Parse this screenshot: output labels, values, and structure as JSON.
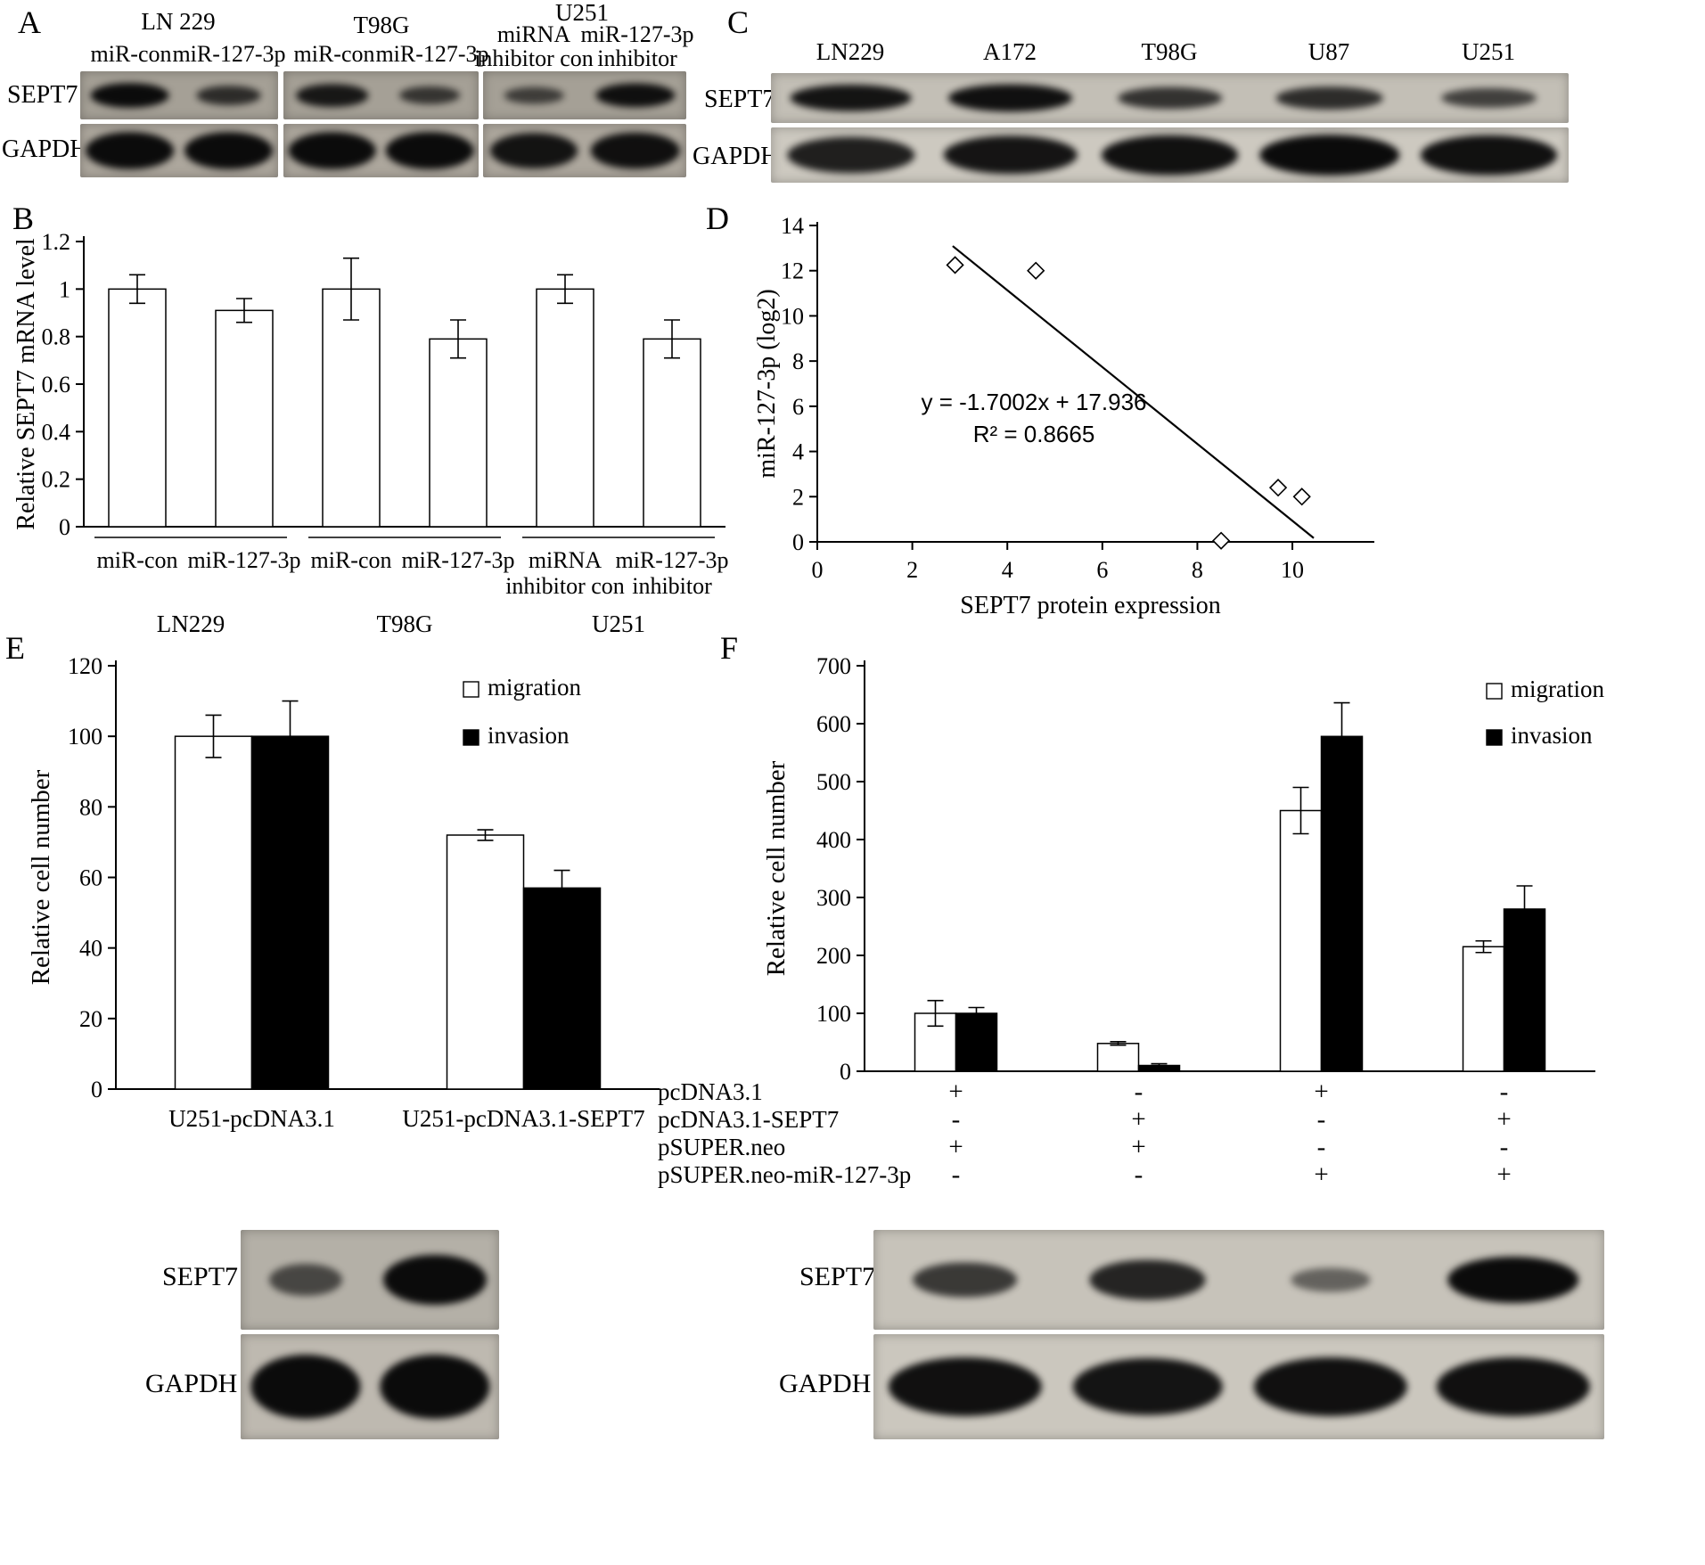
{
  "panel_a": {
    "label": "A",
    "row_labels": [
      "SEPT7",
      "GAPDH"
    ],
    "groups": [
      {
        "title": "LN 229",
        "lanes": [
          "miR-con",
          "miR-127-3p"
        ]
      },
      {
        "title": "T98G",
        "lanes": [
          "miR-con",
          "miR-127-3p"
        ]
      },
      {
        "title": "U251",
        "lanes": [
          "miRNA inhibitor con",
          "miR-127-3p inhibitor"
        ],
        "lanes_lines": [
          [
            "miRNA",
            "inhibitor con"
          ],
          [
            "miR-127-3p",
            "inhibitor"
          ]
        ]
      }
    ],
    "blot": {
      "sept7": [
        [
          1.0,
          0.6
        ],
        [
          0.85,
          0.5
        ],
        [
          0.4,
          0.95
        ]
      ],
      "gapdh": [
        [
          1.0,
          1.0
        ],
        [
          1.0,
          1.0
        ],
        [
          0.9,
          0.95
        ]
      ]
    }
  },
  "panel_c": {
    "label": "C",
    "lanes": [
      "LN229",
      "A172",
      "T98G",
      "U87",
      "U251"
    ],
    "row_labels": [
      "SEPT7",
      "GAPDH"
    ],
    "blot": {
      "sept7": [
        0.9,
        0.95,
        0.6,
        0.65,
        0.45
      ],
      "gapdh": [
        0.8,
        0.9,
        0.95,
        1.0,
        0.95
      ]
    }
  },
  "panel_b": {
    "label": "B"
  },
  "panel_d": {
    "label": "D"
  },
  "panel_e": {
    "label": "E",
    "blot_labels": [
      "SEPT7",
      "GAPDH"
    ],
    "blot": {
      "sept7": [
        0.35,
        1.0
      ],
      "gapdh": [
        1.0,
        1.0
      ]
    }
  },
  "panel_f": {
    "label": "F",
    "blot_labels": [
      "SEPT7",
      "GAPDH"
    ],
    "blot": {
      "sept7": [
        0.55,
        0.75,
        0.12,
        1.0
      ],
      "gapdh": [
        0.95,
        0.9,
        0.95,
        0.95
      ]
    }
  },
  "chart_data": [
    {
      "id": "chart-b",
      "type": "bar",
      "title": "",
      "xlabel": "",
      "ylabel": "Relative SEPT7 mRNA level",
      "ylim": [
        0,
        1.2
      ],
      "ytick_labels": [
        "0",
        "0.2",
        "0.4",
        "0.6",
        "0.8",
        "1",
        "1.2"
      ],
      "categories": [
        "miR-con",
        "miR-127-3p",
        "miR-con",
        "miR-127-3p",
        "miRNA inhibitor con",
        "miR-127-3p inhibitor"
      ],
      "category_label_lines": [
        [
          "miR-con"
        ],
        [
          "miR-127-3p"
        ],
        [
          "miR-con"
        ],
        [
          "miR-127-3p"
        ],
        [
          "miRNA",
          "inhibitor con"
        ],
        [
          "miR-127-3p",
          "inhibitor"
        ]
      ],
      "values": [
        1.0,
        0.91,
        1.0,
        0.79,
        1.0,
        0.79
      ],
      "errors": [
        0.06,
        0.05,
        0.13,
        0.08,
        0.06,
        0.08
      ],
      "groups": [
        {
          "label": "LN229",
          "from": 0,
          "to": 1
        },
        {
          "label": "T98G",
          "from": 2,
          "to": 3
        },
        {
          "label": "U251",
          "from": 4,
          "to": 5
        }
      ],
      "grid": false,
      "bar_fill": "#ffffff"
    },
    {
      "id": "chart-d",
      "type": "scatter",
      "xlabel": "SEPT7 protein expression",
      "ylabel": "miR-127-3p (log2)",
      "xlim": [
        0,
        11.5
      ],
      "ylim": [
        0,
        14
      ],
      "xtick_labels": [
        "0",
        "2",
        "4",
        "6",
        "8",
        "10"
      ],
      "ytick_labels": [
        "0",
        "2",
        "4",
        "6",
        "8",
        "10",
        "12",
        "14"
      ],
      "points": [
        [
          2.9,
          12.25
        ],
        [
          4.6,
          12.0
        ],
        [
          8.5,
          0.05
        ],
        [
          9.7,
          2.4
        ],
        [
          10.2,
          2.0
        ]
      ],
      "trendline": {
        "slope": -1.7002,
        "intercept": 17.936,
        "x_start": 2.85,
        "x_end": 10.45
      },
      "annotation_lines": [
        "y = -1.7002x + 17.936",
        "R² = 0.8665"
      ],
      "grid": false
    },
    {
      "id": "chart-e",
      "type": "bar",
      "ylabel": "Relative cell number",
      "ylim": [
        0,
        120
      ],
      "ytick_labels": [
        "0",
        "20",
        "40",
        "60",
        "80",
        "100",
        "120"
      ],
      "categories": [
        "U251-pcDNA3.1",
        "U251-pcDNA3.1-SEPT7"
      ],
      "series": [
        {
          "name": "migration",
          "values": [
            100,
            72
          ],
          "errors": [
            6,
            1.5
          ],
          "fill": "#ffffff"
        },
        {
          "name": "invasion",
          "values": [
            100,
            57
          ],
          "errors": [
            10,
            5
          ],
          "fill": "#000000"
        }
      ],
      "legend": [
        "migration",
        "invasion"
      ],
      "legend_position": "top-right",
      "grid": false
    },
    {
      "id": "chart-f",
      "type": "bar",
      "ylabel": "Relative cell number",
      "ylim": [
        0,
        700
      ],
      "ytick_labels": [
        "0",
        "100",
        "200",
        "300",
        "400",
        "500",
        "600",
        "700"
      ],
      "series": [
        {
          "name": "migration",
          "values": [
            100,
            48,
            450,
            215
          ],
          "errors": [
            22,
            3,
            40,
            10
          ],
          "fill": "#ffffff"
        },
        {
          "name": "invasion",
          "values": [
            100,
            10,
            578,
            280
          ],
          "errors": [
            10,
            3,
            58,
            40
          ],
          "fill": "#000000"
        }
      ],
      "legend": [
        "migration",
        "invasion"
      ],
      "legend_position": "top-right",
      "conditions": [
        {
          "label": "pcDNA3.1",
          "values": [
            "+",
            "-",
            "+",
            "-"
          ]
        },
        {
          "label": "pcDNA3.1-SEPT7",
          "values": [
            "-",
            "+",
            "-",
            "+"
          ]
        },
        {
          "label": "pSUPER.neo",
          "values": [
            "+",
            "+",
            "-",
            "-"
          ]
        },
        {
          "label": "pSUPER.neo-miR-127-3p",
          "values": [
            "-",
            "-",
            "+",
            "+"
          ]
        }
      ],
      "grid": false
    }
  ]
}
